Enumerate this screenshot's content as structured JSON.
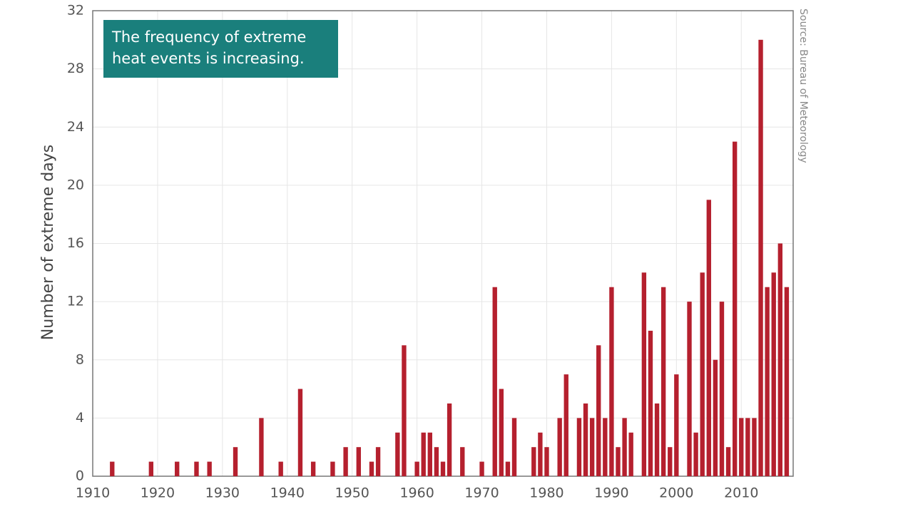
{
  "chart_data": {
    "type": "bar",
    "annotation": "The frequency of extreme heat events is increasing.",
    "source": "Source: Bureau of Meteorology",
    "y_label": "Number of extreme days",
    "color": "#b5202e",
    "grid": true,
    "x": [
      1913,
      1919,
      1923,
      1926,
      1928,
      1932,
      1936,
      1939,
      1942,
      1944,
      1947,
      1949,
      1951,
      1953,
      1954,
      1957,
      1958,
      1960,
      1961,
      1962,
      1963,
      1964,
      1965,
      1967,
      1970,
      1972,
      1973,
      1974,
      1975,
      1978,
      1979,
      1980,
      1982,
      1983,
      1985,
      1986,
      1987,
      1988,
      1989,
      1990,
      1991,
      1992,
      1993,
      1995,
      1996,
      1997,
      1998,
      1999,
      2000,
      2002,
      2003,
      2004,
      2005,
      2006,
      2007,
      2008,
      2009,
      2010,
      2011,
      2012,
      2013,
      2014,
      2015,
      2016,
      2017
    ],
    "values": [
      1,
      1,
      1,
      1,
      1,
      2,
      4,
      1,
      6,
      1,
      1,
      2,
      2,
      1,
      2,
      3,
      9,
      1,
      3,
      3,
      2,
      1,
      5,
      2,
      1,
      13,
      6,
      1,
      4,
      2,
      3,
      2,
      4,
      7,
      4,
      5,
      4,
      9,
      4,
      13,
      2,
      4,
      3,
      14,
      10,
      5,
      13,
      2,
      7,
      12,
      3,
      14,
      19,
      8,
      12,
      2,
      23,
      4,
      4,
      4,
      30,
      13,
      14,
      16,
      13
    ],
    "xlim": [
      1910,
      2018
    ],
    "xticks": [
      1910,
      1920,
      1930,
      1940,
      1950,
      1960,
      1970,
      1980,
      1990,
      2000,
      2010
    ],
    "ylim": [
      0,
      32
    ],
    "yticks": [
      0,
      4,
      8,
      12,
      16,
      20,
      24,
      28,
      32
    ]
  }
}
